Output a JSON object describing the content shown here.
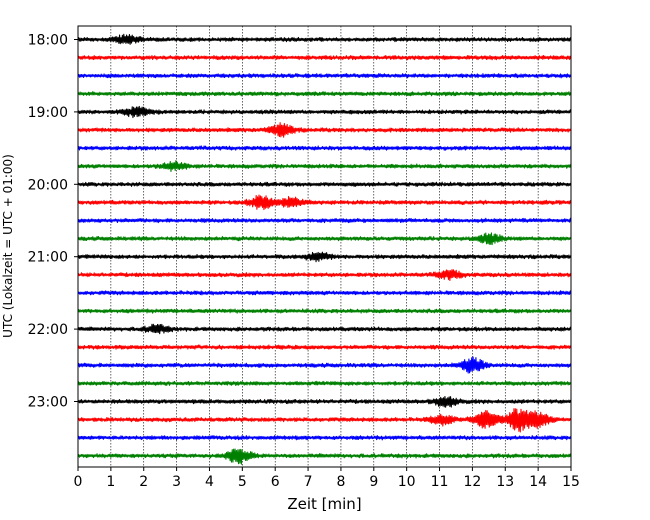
{
  "chart_data": {
    "type": "line",
    "title": "",
    "xlabel": "Zeit  [min]",
    "ylabel": "UTC (Lokalzeit = UTC + 01:00)",
    "xlim": [
      0,
      15
    ],
    "x_ticks": [
      "0",
      "1",
      "2",
      "3",
      "4",
      "5",
      "6",
      "7",
      "8",
      "9",
      "10",
      "11",
      "12",
      "13",
      "14",
      "15"
    ],
    "y_tick_labels": [
      "18:00",
      "19:00",
      "20:00",
      "21:00",
      "22:00",
      "23:00"
    ],
    "grid": "vertical dotted",
    "trace_colors": [
      "#000000",
      "#ff0000",
      "#0000ff",
      "#008000"
    ],
    "trace_rows": [
      "18:00",
      "18:15",
      "18:30",
      "18:45",
      "19:00",
      "19:15",
      "19:30",
      "19:45",
      "20:00",
      "20:15",
      "20:30",
      "20:45",
      "21:00",
      "21:15",
      "21:30",
      "21:45",
      "22:00",
      "22:15",
      "22:30",
      "22:45",
      "23:00",
      "23:15",
      "23:30",
      "23:45"
    ],
    "bursts": [
      {
        "row": "18:00",
        "minute": 1.5,
        "amplitude": 1.8
      },
      {
        "row": "19:00",
        "minute": 1.8,
        "amplitude": 2.0
      },
      {
        "row": "19:15",
        "minute": 6.2,
        "amplitude": 2.5
      },
      {
        "row": "19:45",
        "minute": 2.9,
        "amplitude": 1.8
      },
      {
        "row": "20:15",
        "minute": 5.6,
        "amplitude": 3.0
      },
      {
        "row": "20:15",
        "minute": 6.5,
        "amplitude": 2.2
      },
      {
        "row": "20:45",
        "minute": 12.5,
        "amplitude": 2.0
      },
      {
        "row": "21:00",
        "minute": 7.3,
        "amplitude": 1.6
      },
      {
        "row": "21:15",
        "minute": 11.3,
        "amplitude": 1.8
      },
      {
        "row": "22:00",
        "minute": 2.4,
        "amplitude": 1.6
      },
      {
        "row": "22:30",
        "minute": 12.0,
        "amplitude": 3.0
      },
      {
        "row": "23:00",
        "minute": 11.2,
        "amplitude": 2.0
      },
      {
        "row": "23:15",
        "minute": 11.1,
        "amplitude": 2.2
      },
      {
        "row": "23:15",
        "minute": 12.4,
        "amplitude": 3.5
      },
      {
        "row": "23:15",
        "minute": 13.4,
        "amplitude": 5.0
      },
      {
        "row": "23:15",
        "minute": 14.0,
        "amplitude": 3.0
      },
      {
        "row": "23:45",
        "minute": 4.9,
        "amplitude": 3.0
      }
    ]
  }
}
